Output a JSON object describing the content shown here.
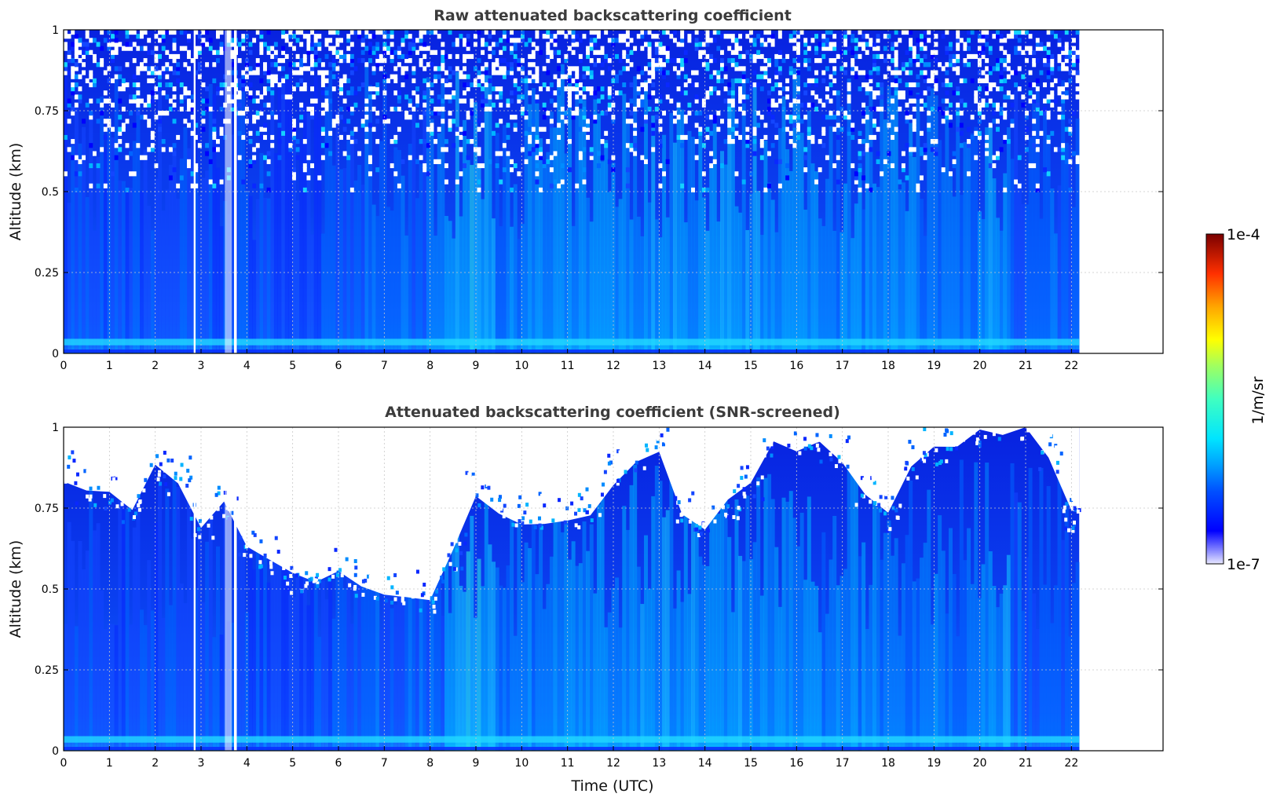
{
  "chart_data": [
    {
      "type": "heatmap",
      "title": "Raw attenuated backscattering coefficient",
      "xlabel": "",
      "ylabel": "Altitude (km)",
      "xlim": [
        0,
        24
      ],
      "ylim": [
        0,
        1
      ],
      "xticks": [
        "0",
        "1",
        "2",
        "3",
        "4",
        "5",
        "6",
        "7",
        "8",
        "9",
        "10",
        "11",
        "12",
        "13",
        "14",
        "15",
        "16",
        "17",
        "18",
        "19",
        "20",
        "21",
        "22"
      ],
      "yticks": [
        "0",
        "0.25",
        "0.5",
        "0.75",
        "1"
      ],
      "data_extent_hours": [
        0,
        22.17
      ],
      "grid": true,
      "screened": false
    },
    {
      "type": "heatmap",
      "title": "Attenuated backscattering coefficient (SNR-screened)",
      "xlabel": "Time (UTC)",
      "ylabel": "Altitude (km)",
      "xlim": [
        0,
        24
      ],
      "ylim": [
        0,
        1
      ],
      "xticks": [
        "0",
        "1",
        "2",
        "3",
        "4",
        "5",
        "6",
        "7",
        "8",
        "9",
        "10",
        "11",
        "12",
        "13",
        "14",
        "15",
        "16",
        "17",
        "18",
        "19",
        "20",
        "21",
        "22"
      ],
      "yticks": [
        "0",
        "0.25",
        "0.5",
        "0.75",
        "1"
      ],
      "data_extent_hours": [
        0,
        22.17
      ],
      "grid": true,
      "screened": true,
      "screen_boundary_km": {
        "hours": [
          0,
          0.5,
          1,
          1.5,
          2,
          2.5,
          3,
          3.5,
          4,
          4.5,
          5,
          5.5,
          6,
          6.5,
          7,
          7.5,
          8,
          8.5,
          9,
          9.5,
          10,
          10.5,
          11,
          11.5,
          12,
          12.5,
          13,
          13.5,
          14,
          14.5,
          15,
          15.5,
          16,
          16.5,
          17,
          17.5,
          18,
          18.5,
          19,
          19.5,
          20,
          20.5,
          21,
          21.5,
          22,
          22.17
        ],
        "top": [
          0.85,
          0.8,
          0.78,
          0.73,
          0.86,
          0.83,
          0.7,
          0.75,
          0.63,
          0.58,
          0.52,
          0.55,
          0.55,
          0.52,
          0.49,
          0.49,
          0.46,
          0.6,
          0.8,
          0.75,
          0.72,
          0.73,
          0.73,
          0.75,
          0.85,
          0.9,
          0.95,
          0.75,
          0.68,
          0.75,
          0.8,
          0.95,
          0.95,
          0.93,
          0.9,
          0.8,
          0.72,
          0.88,
          0.92,
          0.95,
          0.98,
          1.0,
          1.0,
          0.9,
          0.72,
          0.72
        ]
      }
    }
  ],
  "colorbar": {
    "label": "1/m/sr",
    "min_label": "1e-7",
    "max_label": "1e-4",
    "colors": [
      "#e8e8ff",
      "#0000c8",
      "#0000ff",
      "#0050ff",
      "#00a0ff",
      "#00e5ff",
      "#40ffc0",
      "#a0ff60",
      "#ffff00",
      "#ffa500",
      "#ff3000",
      "#b00000",
      "#7a0000"
    ]
  },
  "theme": {
    "background": "#ffffff",
    "grid_color": "#c8c8c8",
    "axis_color": "#000000"
  }
}
